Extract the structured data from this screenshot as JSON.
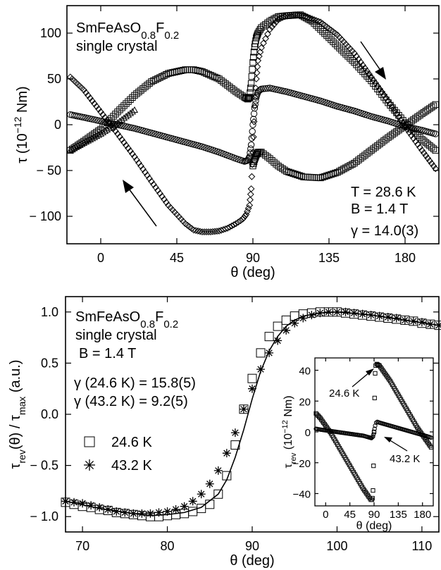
{
  "chart_data": [
    {
      "type": "scatter",
      "panel": "top",
      "sample_lines": [
        "SmFeAsO",
        "0.8",
        "F",
        "0.2",
        "single crystal"
      ],
      "conditions": [
        "T = 28.6 K",
        "B = 1.4 T",
        "γ = 14.0(3)"
      ],
      "xlabel": "θ (deg)",
      "ylabel_parts": [
        "τ (10",
        "−12",
        " Nm)"
      ],
      "xlim": [
        -20,
        200
      ],
      "ylim": [
        -130,
        130
      ],
      "x_ticks": [
        0,
        45,
        90,
        135,
        180
      ],
      "y_ticks": [
        -100,
        -50,
        0,
        50,
        100
      ],
      "x_tick_labels": [
        "0",
        "45",
        "90",
        "135",
        "180"
      ],
      "y_tick_labels": [
        "− 100",
        "− 50",
        "0",
        "50",
        "100"
      ],
      "series": [
        {
          "marker": "diamond",
          "points": [
            [
              -18,
              52
            ],
            [
              -10,
              38
            ],
            [
              0,
              14
            ],
            [
              10,
              -10
            ],
            [
              20,
              -35
            ],
            [
              30,
              -62
            ],
            [
              40,
              -88
            ],
            [
              50,
              -108
            ],
            [
              55,
              -115
            ],
            [
              60,
              -117
            ],
            [
              65,
              -117
            ],
            [
              70,
              -116
            ],
            [
              75,
              -113
            ],
            [
              80,
              -108
            ],
            [
              84,
              -103
            ],
            [
              86,
              -98
            ],
            [
              88,
              -88
            ],
            [
              89,
              -70
            ],
            [
              90,
              -30
            ],
            [
              91,
              20
            ],
            [
              92,
              50
            ],
            [
              93,
              70
            ],
            [
              95,
              84
            ],
            [
              100,
              104
            ],
            [
              105,
              115
            ],
            [
              110,
              119
            ],
            [
              115,
              120
            ],
            [
              120,
              119
            ],
            [
              130,
              112
            ],
            [
              140,
              98
            ],
            [
              150,
              78
            ],
            [
              160,
              52
            ],
            [
              170,
              26
            ],
            [
              180,
              -2
            ],
            [
              190,
              -28
            ],
            [
              198,
              -48
            ]
          ]
        },
        {
          "marker": "square",
          "points": [
            [
              -18,
              -28
            ],
            [
              -10,
              -18
            ],
            [
              0,
              -5
            ],
            [
              10,
              14
            ],
            [
              20,
              32
            ],
            [
              30,
              47
            ],
            [
              40,
              56
            ],
            [
              50,
              60
            ],
            [
              55,
              60
            ],
            [
              60,
              58
            ],
            [
              70,
              50
            ],
            [
              80,
              36
            ],
            [
              85,
              30
            ],
            [
              87,
              28
            ],
            [
              88,
              30
            ],
            [
              89,
              45
            ],
            [
              90,
              68
            ],
            [
              91,
              85
            ],
            [
              92,
              95
            ],
            [
              93,
              100
            ],
            [
              95,
              106
            ],
            [
              100,
              113
            ],
            [
              105,
              118
            ],
            [
              110,
              119
            ],
            [
              118,
              120
            ],
            [
              125,
              113
            ],
            [
              135,
              95
            ],
            [
              140,
              86
            ],
            [
              150,
              68
            ],
            [
              160,
              48
            ],
            [
              170,
              24
            ],
            [
              180,
              2
            ],
            [
              190,
              -16
            ],
            [
              198,
              -28
            ]
          ]
        },
        {
          "marker": "circle",
          "points": [
            [
              -18,
              11
            ],
            [
              -10,
              8
            ],
            [
              0,
              4
            ],
            [
              10,
              0
            ],
            [
              20,
              -4
            ],
            [
              30,
              -9
            ],
            [
              40,
              -14
            ],
            [
              50,
              -19
            ],
            [
              60,
              -24
            ],
            [
              70,
              -30
            ],
            [
              80,
              -37
            ],
            [
              85,
              -40
            ],
            [
              87,
              -39
            ],
            [
              88,
              -35
            ],
            [
              89,
              -22
            ],
            [
              90,
              0
            ],
            [
              91,
              18
            ],
            [
              92,
              30
            ],
            [
              93,
              36
            ],
            [
              95,
              39
            ],
            [
              100,
              40
            ],
            [
              110,
              36
            ],
            [
              120,
              31
            ],
            [
              130,
              26
            ],
            [
              140,
              20
            ],
            [
              150,
              15
            ],
            [
              160,
              9
            ],
            [
              170,
              4
            ],
            [
              180,
              -2
            ],
            [
              190,
              -6
            ],
            [
              198,
              -10
            ]
          ]
        },
        {
          "marker": "square",
          "points": [
            [
              90,
              -45
            ],
            [
              91,
              -38
            ],
            [
              92,
              -33
            ],
            [
              93,
              -30
            ],
            [
              95,
              -30
            ],
            [
              100,
              -37
            ],
            [
              105,
              -45
            ],
            [
              110,
              -51
            ],
            [
              120,
              -57
            ],
            [
              130,
              -58
            ],
            [
              140,
              -52
            ],
            [
              150,
              -42
            ],
            [
              160,
              -28
            ],
            [
              170,
              -14
            ],
            [
              180,
              -1
            ],
            [
              190,
              12
            ],
            [
              198,
              22
            ]
          ]
        },
        {
          "marker": "triangle",
          "points": [
            [
              -18,
              -28
            ],
            [
              -10,
              -20
            ],
            [
              0,
              -10
            ],
            [
              10,
              2
            ],
            [
              20,
              16
            ]
          ]
        }
      ],
      "annotations": [
        "arrow top-right pointing down along curve",
        "arrow bottom-left pointing up along curve"
      ]
    },
    {
      "type": "scatter",
      "panel": "bottom",
      "sample_lines": [
        "SmFeAsO",
        "0.8",
        "F",
        "0.2",
        "single crystal"
      ],
      "conditions": [
        "B = 1.4 T",
        "γ (24.6 K) = 15.8(5)",
        "γ (43.2 K) = 9.2(5)"
      ],
      "xlabel": "θ (deg)",
      "ylabel_parts": [
        "τ",
        "rev",
        "(θ) / τ",
        "max",
        " (a.u.)"
      ],
      "xlim": [
        68,
        112
      ],
      "ylim": [
        -1.15,
        1.15
      ],
      "x_ticks": [
        70,
        80,
        90,
        100,
        110
      ],
      "y_ticks": [
        -1.0,
        -0.5,
        0.0,
        0.5,
        1.0
      ],
      "x_tick_labels": [
        "70",
        "80",
        "90",
        "100",
        "110"
      ],
      "y_tick_labels": [
        "− 1.0",
        "− 0.5",
        "0.0",
        "0.5",
        "1.0"
      ],
      "legend": [
        {
          "marker": "square",
          "label": "24.6 K"
        },
        {
          "marker": "asterisk",
          "label": "43.2 K"
        }
      ],
      "series": [
        {
          "name": "24.6 K",
          "marker": "square",
          "x": [
            68,
            69,
            70,
            71,
            72,
            73,
            74,
            75,
            76,
            77,
            78,
            79,
            80,
            81,
            82,
            83,
            84,
            85,
            86,
            87,
            88,
            89,
            90,
            91,
            92,
            93,
            94,
            95,
            96,
            97,
            98,
            99,
            100,
            101,
            102,
            103,
            104,
            105,
            106,
            107,
            108,
            109,
            110,
            111,
            112
          ],
          "y": [
            -0.86,
            -0.88,
            -0.9,
            -0.91,
            -0.93,
            -0.94,
            -0.96,
            -0.97,
            -0.98,
            -0.99,
            -1.0,
            -1.0,
            -0.99,
            -0.98,
            -0.97,
            -0.95,
            -0.92,
            -0.88,
            -0.78,
            -0.6,
            -0.3,
            0.05,
            0.35,
            0.6,
            0.76,
            0.86,
            0.92,
            0.96,
            0.98,
            0.99,
            1.0,
            1.0,
            1.0,
            0.99,
            0.98,
            0.97,
            0.96,
            0.95,
            0.94,
            0.93,
            0.92,
            0.91,
            0.89,
            0.88,
            0.87
          ]
        },
        {
          "name": "43.2 K",
          "marker": "asterisk",
          "x": [
            68,
            69,
            70,
            71,
            72,
            73,
            74,
            75,
            76,
            77,
            78,
            79,
            80,
            81,
            82,
            83,
            84,
            85,
            86,
            87,
            88,
            89,
            90,
            91,
            92,
            93,
            94,
            95,
            96,
            97,
            98,
            99,
            100,
            101,
            102,
            103,
            104,
            105,
            106,
            107,
            108,
            109,
            110,
            111,
            112
          ],
          "y": [
            -0.85,
            -0.86,
            -0.87,
            -0.89,
            -0.91,
            -0.93,
            -0.95,
            -0.96,
            -0.97,
            -0.97,
            -0.97,
            -0.96,
            -0.95,
            -0.93,
            -0.9,
            -0.85,
            -0.78,
            -0.68,
            -0.55,
            -0.38,
            -0.18,
            0.05,
            0.25,
            0.44,
            0.6,
            0.72,
            0.82,
            0.89,
            0.94,
            0.97,
            0.99,
            1.0,
            1.0,
            1.0,
            0.99,
            0.98,
            0.97,
            0.96,
            0.95,
            0.94,
            0.92,
            0.91,
            0.9,
            0.88,
            0.87
          ]
        }
      ],
      "fit_line": {
        "x": [
          68,
          72,
          76,
          78,
          80,
          82,
          84,
          86,
          87,
          88,
          89,
          90,
          91,
          92,
          93,
          94,
          95,
          96,
          98,
          100,
          104,
          108,
          112
        ],
        "y": [
          -0.85,
          -0.92,
          -0.97,
          -0.99,
          -0.98,
          -0.96,
          -0.91,
          -0.78,
          -0.64,
          -0.42,
          -0.15,
          0.15,
          0.42,
          0.62,
          0.76,
          0.86,
          0.92,
          0.96,
          0.99,
          1.0,
          0.97,
          0.92,
          0.87
        ]
      }
    },
    {
      "type": "scatter",
      "panel": "inset",
      "xlabel": "θ (deg)",
      "ylabel_parts": [
        "τ",
        "rev",
        " (10",
        "−12",
        " Nm)"
      ],
      "xlim": [
        -20,
        200
      ],
      "ylim": [
        -48,
        48
      ],
      "x_ticks": [
        0,
        45,
        90,
        135,
        180
      ],
      "y_ticks": [
        -40,
        -20,
        0,
        20,
        40
      ],
      "x_tick_labels": [
        "0",
        "45",
        "90",
        "135",
        "180"
      ],
      "y_tick_labels": [
        "−40",
        "−20",
        "0",
        "20",
        "40"
      ],
      "series": [
        {
          "name": "24.6 K",
          "marker": "square",
          "points": [
            [
              -18,
              12
            ],
            [
              -10,
              9
            ],
            [
              0,
              4
            ],
            [
              10,
              -1
            ],
            [
              20,
              -7
            ],
            [
              30,
              -13
            ],
            [
              40,
              -19
            ],
            [
              50,
              -25
            ],
            [
              60,
              -31
            ],
            [
              70,
              -37
            ],
            [
              80,
              -42
            ],
            [
              84,
              -44
            ],
            [
              86,
              -44
            ],
            [
              87,
              -43
            ],
            [
              88,
              -38
            ],
            [
              89,
              -22
            ],
            [
              90,
              0
            ],
            [
              91,
              22
            ],
            [
              92,
              38
            ],
            [
              93,
              43
            ],
            [
              95,
              44
            ],
            [
              100,
              43
            ],
            [
              110,
              38
            ],
            [
              120,
              33
            ],
            [
              130,
              27
            ],
            [
              140,
              21
            ],
            [
              150,
              15
            ],
            [
              160,
              9
            ],
            [
              170,
              3
            ],
            [
              180,
              -2
            ],
            [
              190,
              -7
            ],
            [
              198,
              -11
            ]
          ]
        },
        {
          "name": "43.2 K",
          "marker": "circle",
          "points": [
            [
              -18,
              2
            ],
            [
              -10,
              1.5
            ],
            [
              0,
              1
            ],
            [
              10,
              0.5
            ],
            [
              20,
              0
            ],
            [
              30,
              -0.5
            ],
            [
              40,
              -1
            ],
            [
              50,
              -1.5
            ],
            [
              60,
              -2
            ],
            [
              70,
              -2.5
            ],
            [
              80,
              -3.5
            ],
            [
              85,
              -4
            ],
            [
              88,
              -3
            ],
            [
              89,
              -1.5
            ],
            [
              90,
              0
            ],
            [
              91,
              2
            ],
            [
              92,
              4
            ],
            [
              94,
              6
            ],
            [
              96,
              6.5
            ],
            [
              100,
              6
            ],
            [
              110,
              5
            ],
            [
              120,
              4
            ],
            [
              130,
              3
            ],
            [
              140,
              2
            ],
            [
              150,
              1
            ],
            [
              160,
              0
            ],
            [
              170,
              -1
            ],
            [
              180,
              -2
            ],
            [
              190,
              -3
            ],
            [
              198,
              -4
            ]
          ]
        }
      ],
      "labels": [
        "24.6 K",
        "43.2 K"
      ]
    }
  ]
}
